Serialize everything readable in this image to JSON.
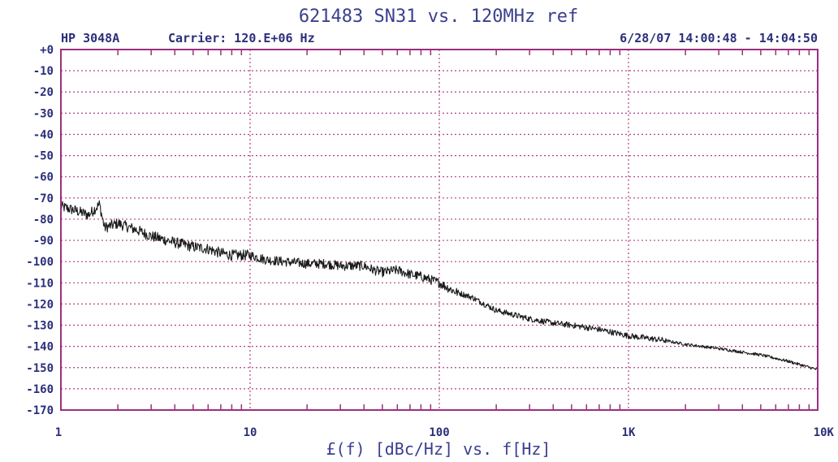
{
  "header": {
    "instrument": "HP 3048A",
    "carrier": "Carrier: 120.E+06 Hz",
    "datetime": "6/28/07  14:00:48 - 14:04:50"
  },
  "colors": {
    "grid": "#b0408a",
    "frame": "#9c2f7d",
    "text": "#2b2f7a",
    "trace": "#1a1a1a"
  },
  "chart_data": {
    "type": "line",
    "title": "621483 SN31 vs. 120MHz ref",
    "xlabel": "£(f) [dBc/Hz] vs. f[Hz]",
    "ylabel": "",
    "x_scale": "log",
    "xlim": [
      1,
      10000
    ],
    "ylim": [
      -170,
      0
    ],
    "grid": true,
    "y_ticks": [
      0,
      -10,
      -20,
      -30,
      -40,
      -50,
      -60,
      -70,
      -80,
      -90,
      -100,
      -110,
      -120,
      -130,
      -140,
      -150,
      -160,
      -170
    ],
    "y_tick_labels": [
      "+0",
      "-10",
      "-20",
      "-30",
      "-40",
      "-50",
      "-60",
      "-70",
      "-80",
      "-90",
      "-100",
      "-110",
      "-120",
      "-130",
      "-140",
      "-150",
      "-160",
      "-170"
    ],
    "x_ticks": [
      1,
      10,
      100,
      1000,
      10000
    ],
    "x_tick_labels": [
      "1",
      "10",
      "100",
      "1K",
      "10K"
    ],
    "series": [
      {
        "values_x": [
          1.0,
          1.2,
          1.4,
          1.6,
          1.7,
          2.0,
          2.5,
          3.0,
          4.0,
          5.0,
          6.0,
          7.0,
          8.0,
          10.0,
          12.0,
          15.0,
          20.0,
          25.0,
          30.0,
          40.0,
          45.0,
          50.0,
          60.0,
          70.0,
          80.0,
          100.0,
          120.0,
          150.0,
          200.0,
          300.0,
          400.0,
          500.0,
          700.0,
          1000.0,
          1500.0,
          2000.0,
          3000.0,
          5000.0,
          7000.0,
          10000.0
        ],
        "values_y": [
          -74,
          -76,
          -78,
          -73,
          -84,
          -82,
          -85,
          -88,
          -91,
          -93,
          -94,
          -96,
          -97,
          -97,
          -99,
          -100,
          -101,
          -101,
          -102,
          -102,
          -104,
          -105,
          -104,
          -106,
          -107,
          -110,
          -114,
          -117,
          -123,
          -127,
          -129,
          -130,
          -132,
          -135,
          -137,
          -139,
          -141,
          -144,
          -147,
          -151
        ]
      }
    ]
  }
}
